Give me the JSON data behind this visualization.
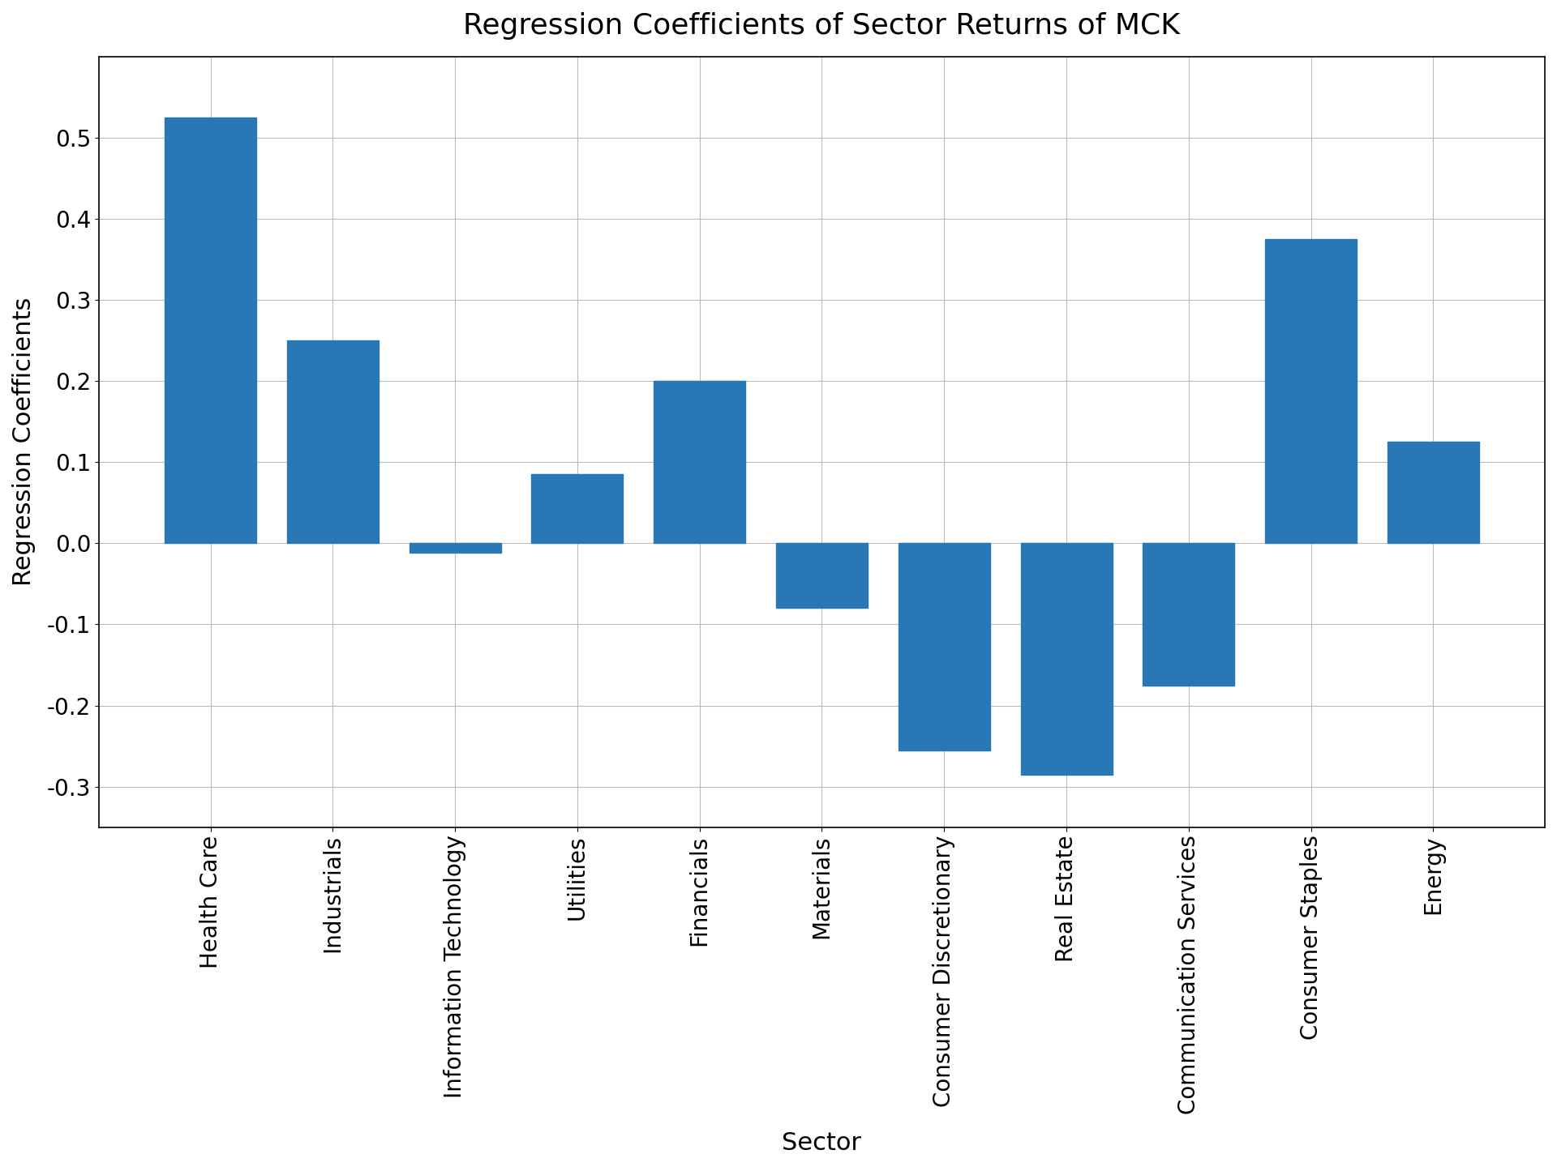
{
  "categories": [
    "Health Care",
    "Industrials",
    "Information Technology",
    "Utilities",
    "Financials",
    "Materials",
    "Consumer Discretionary",
    "Real Estate",
    "Communication Services",
    "Consumer Staples",
    "Energy"
  ],
  "values": [
    0.525,
    0.25,
    -0.012,
    0.085,
    0.2,
    -0.08,
    -0.255,
    -0.285,
    -0.175,
    0.375,
    0.125
  ],
  "bar_color": "#2878b5",
  "title": "Regression Coefficients of Sector Returns of MCK",
  "xlabel": "Sector",
  "ylabel": "Regression Coefficients",
  "ylim": [
    -0.35,
    0.6
  ],
  "yticks": [
    -0.3,
    -0.2,
    -0.1,
    0.0,
    0.1,
    0.2,
    0.3,
    0.4,
    0.5
  ],
  "title_fontsize": 26,
  "label_fontsize": 22,
  "tick_fontsize": 20,
  "background_color": "#ffffff",
  "grid_color": "#bbbbbb",
  "bar_width": 0.75
}
